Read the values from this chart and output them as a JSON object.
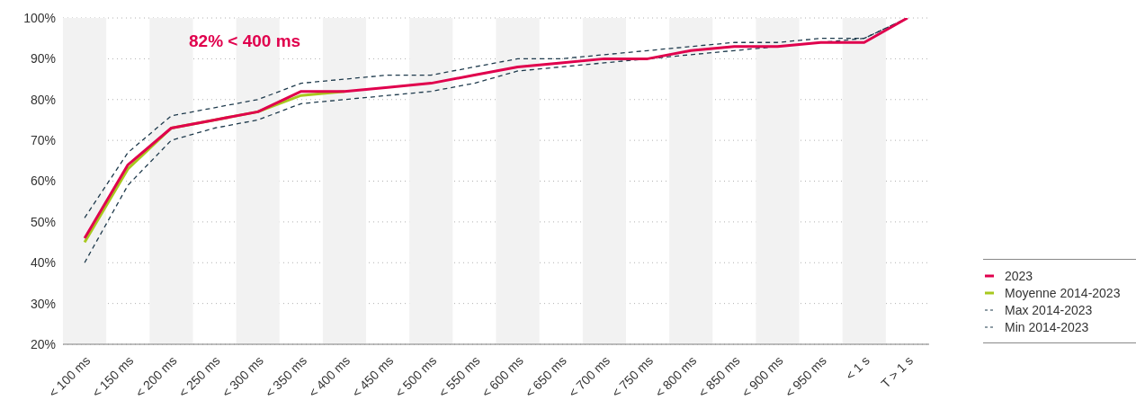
{
  "chart_data": {
    "type": "line",
    "categories": [
      "< 100 ms",
      "< 150 ms",
      "< 200 ms",
      "< 250 ms",
      "< 300 ms",
      "< 350 ms",
      "< 400 ms",
      "< 450 ms",
      "< 500 ms",
      "< 550 ms",
      "< 600 ms",
      "< 650 ms",
      "< 700 ms",
      "< 750 ms",
      "< 800 ms",
      "< 850 ms",
      "< 900 ms",
      "< 950 ms",
      "< 1 s",
      "T > 1 s"
    ],
    "series": [
      {
        "name": "Min 2014-2023",
        "color": "#1f3b4d",
        "line_style": "dashed",
        "values": [
          40,
          59,
          70,
          73,
          75,
          79,
          80,
          81,
          82,
          84,
          87,
          88,
          89,
          90,
          91,
          92,
          93,
          94,
          95,
          100
        ]
      },
      {
        "name": "Max 2014-2023",
        "color": "#1f3b4d",
        "line_style": "dashed",
        "values": [
          51,
          67,
          76,
          78,
          80,
          84,
          85,
          86,
          86,
          88,
          90,
          90,
          91,
          92,
          93,
          94,
          94,
          95,
          95,
          100
        ]
      },
      {
        "name": "Moyenne 2014-2023",
        "color": "#a8c81e",
        "line_style": "solid",
        "values": [
          45,
          63,
          73,
          75,
          77,
          81,
          82,
          null,
          null,
          null,
          null,
          null,
          null,
          null,
          null,
          null,
          null,
          null,
          null,
          null
        ]
      },
      {
        "name": "2023",
        "color": "#e0004d",
        "line_style": "solid",
        "values": [
          46,
          64,
          73,
          75,
          77,
          82,
          82,
          83,
          84,
          86,
          88,
          89,
          90,
          90,
          92,
          93,
          93,
          94,
          94,
          100
        ]
      }
    ],
    "ylim": [
      20,
      100
    ],
    "yticks": [
      {
        "value": 20,
        "label": "20%"
      },
      {
        "value": 30,
        "label": "30%"
      },
      {
        "value": 40,
        "label": "40%"
      },
      {
        "value": 50,
        "label": "50%"
      },
      {
        "value": 60,
        "label": "60%"
      },
      {
        "value": 70,
        "label": "70%"
      },
      {
        "value": 80,
        "label": "80%"
      },
      {
        "value": 90,
        "label": "90%"
      },
      {
        "value": 100,
        "label": "100%"
      }
    ],
    "grid": "y",
    "legend": "right",
    "marker": "none",
    "annotations": [
      "82% < 400 ms"
    ],
    "bands": [
      {
        "axis": "x",
        "from": "< 100 ms",
        "to": "< 100 ms",
        "color": "#f2f2f2"
      },
      {
        "axis": "x",
        "from": "< 200 ms",
        "to": "< 200 ms",
        "color": "#f2f2f2"
      },
      {
        "axis": "x",
        "from": "< 300 ms",
        "to": "< 300 ms",
        "color": "#f2f2f2"
      },
      {
        "axis": "x",
        "from": "< 400 ms",
        "to": "< 400 ms",
        "color": "#f2f2f2"
      },
      {
        "axis": "x",
        "from": "< 500 ms",
        "to": "< 500 ms",
        "color": "#f2f2f2"
      },
      {
        "axis": "x",
        "from": "< 600 ms",
        "to": "< 600 ms",
        "color": "#f2f2f2"
      },
      {
        "axis": "x",
        "from": "< 700 ms",
        "to": "< 700 ms",
        "color": "#f2f2f2"
      },
      {
        "axis": "x",
        "from": "< 800 ms",
        "to": "< 800 ms",
        "color": "#f2f2f2"
      },
      {
        "axis": "x",
        "from": "< 900 ms",
        "to": "< 900 ms",
        "color": "#f2f2f2"
      },
      {
        "axis": "x",
        "from": "< 1 s",
        "to": "< 1 s",
        "color": "#f2f2f2"
      }
    ]
  }
}
